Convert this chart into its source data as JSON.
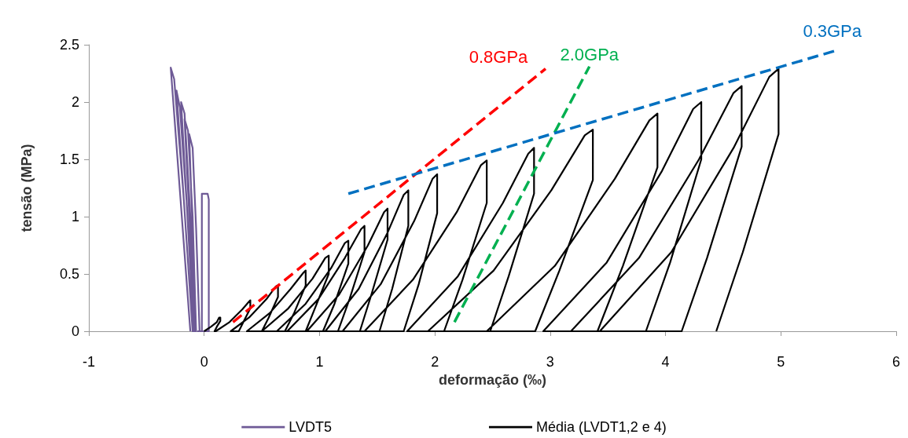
{
  "chart_data": {
    "type": "line",
    "xlabel": "deformação (‰)",
    "ylabel": "tensão (MPa)",
    "xlim": [
      -1,
      6
    ],
    "xticks": [
      -1,
      0,
      1,
      2,
      3,
      4,
      5,
      6
    ],
    "ylim": [
      0,
      2.5
    ],
    "yticks": [
      0,
      0.5,
      1,
      1.5,
      2,
      2.5
    ],
    "grid": false,
    "legend": "bottom",
    "marker": "none",
    "line_style": "solid",
    "series": [
      {
        "name": "LVDT5",
        "color": "#6e5a96",
        "x": [
          -0.12,
          -0.29,
          -0.26,
          -0.18,
          -0.1,
          -0.24,
          -0.21,
          -0.15,
          -0.09,
          -0.2,
          -0.17,
          -0.12,
          -0.08,
          -0.17,
          -0.14,
          -0.1,
          -0.07,
          -0.13,
          -0.1,
          -0.07,
          -0.04,
          -0.02,
          -0.02,
          0.03,
          0.04,
          0.04,
          -0.06
        ],
        "values": [
          0,
          2.3,
          2.2,
          1.2,
          0,
          2.1,
          1.95,
          1.1,
          0,
          2.0,
          1.9,
          1.0,
          0,
          1.85,
          1.75,
          1.0,
          0,
          1.72,
          1.6,
          0.9,
          0,
          0,
          1.2,
          1.2,
          1.15,
          0,
          0
        ]
      },
      {
        "name": "Média (LVDT1,2 e 4)",
        "color": "#000000",
        "x": [
          0,
          0.06,
          0.11,
          0.13,
          0.14,
          0.14,
          0.11,
          0.09,
          0.1,
          0.22,
          0.33,
          0.39,
          0.4,
          0.4,
          0.34,
          0.3,
          0.23,
          0.39,
          0.54,
          0.62,
          0.64,
          0.64,
          0.56,
          0.5,
          0.37,
          0.57,
          0.75,
          0.86,
          0.88,
          0.88,
          0.78,
          0.7,
          0.5,
          0.73,
          0.94,
          1.05,
          1.08,
          1.08,
          0.96,
          0.88,
          0.63,
          0.88,
          1.1,
          1.22,
          1.25,
          1.25,
          1.13,
          1.03,
          0.72,
          0.99,
          1.22,
          1.36,
          1.39,
          1.39,
          1.26,
          1.16,
          0.89,
          1.17,
          1.42,
          1.56,
          1.59,
          1.59,
          1.45,
          1.35,
          1.05,
          1.34,
          1.59,
          1.73,
          1.77,
          1.77,
          1.63,
          1.52,
          1.2,
          1.53,
          1.82,
          1.98,
          2.02,
          2.02,
          1.86,
          1.73,
          1.39,
          1.81,
          2.19,
          2.4,
          2.45,
          2.45,
          2.24,
          2.08,
          1.76,
          2.2,
          2.59,
          2.81,
          2.86,
          2.86,
          2.64,
          2.48,
          1.94,
          2.51,
          3.01,
          3.3,
          3.37,
          3.37,
          3.08,
          2.87,
          2.45,
          3.04,
          3.56,
          3.86,
          3.93,
          3.93,
          3.63,
          3.41,
          2.94,
          3.49,
          3.97,
          4.24,
          4.31,
          4.31,
          4.04,
          3.83,
          3.18,
          3.77,
          4.29,
          4.59,
          4.66,
          4.66,
          4.36,
          4.14,
          3.43,
          4.05,
          4.59,
          4.9,
          4.98,
          4.98,
          4.67,
          4.44
        ],
        "values": [
          0,
          0.04,
          0.08,
          0.12,
          0.12,
          0.09,
          0.04,
          0,
          0,
          0.08,
          0.19,
          0.26,
          0.27,
          0.2,
          0.08,
          0,
          0,
          0.12,
          0.28,
          0.39,
          0.4,
          0.3,
          0.12,
          0,
          0,
          0.16,
          0.37,
          0.51,
          0.53,
          0.4,
          0.16,
          0,
          0,
          0.2,
          0.46,
          0.64,
          0.66,
          0.5,
          0.2,
          0,
          0,
          0.24,
          0.55,
          0.77,
          0.79,
          0.59,
          0.24,
          0,
          0,
          0.28,
          0.64,
          0.89,
          0.92,
          0.69,
          0.28,
          0,
          0,
          0.32,
          0.75,
          1.04,
          1.07,
          0.8,
          0.32,
          0,
          0,
          0.37,
          0.86,
          1.19,
          1.23,
          0.92,
          0.37,
          0,
          0,
          0.41,
          0.96,
          1.33,
          1.37,
          1.03,
          0.41,
          0,
          0,
          0.45,
          1.04,
          1.45,
          1.49,
          1.12,
          0.45,
          0,
          0,
          0.48,
          1.12,
          1.55,
          1.6,
          1.2,
          0.48,
          0,
          0,
          0.53,
          1.23,
          1.71,
          1.76,
          1.32,
          0.53,
          0,
          0,
          0.57,
          1.33,
          1.84,
          1.9,
          1.43,
          0.57,
          0,
          0,
          0.6,
          1.4,
          1.94,
          2.0,
          1.5,
          0.6,
          0,
          0,
          0.64,
          1.5,
          2.08,
          2.14,
          1.61,
          0.64,
          0,
          0,
          0.69,
          1.6,
          2.22,
          2.29,
          1.72,
          0.69,
          0
        ]
      },
      {
        "color": "#ff0000",
        "line_style": "dashed",
        "x": [
          0.25,
          2.96
        ],
        "values": [
          0.08,
          2.29
        ]
      },
      {
        "color": "#00b050",
        "line_style": "dashed",
        "x": [
          2.17,
          3.34
        ],
        "values": [
          0.08,
          2.31
        ]
      },
      {
        "color": "#0070c0",
        "line_style": "dashed",
        "x": [
          1.25,
          5.48
        ],
        "values": [
          1.2,
          2.45
        ]
      }
    ],
    "annotations": [
      "0.8GPa",
      "2.0GPa",
      "0.3GPa"
    ]
  }
}
